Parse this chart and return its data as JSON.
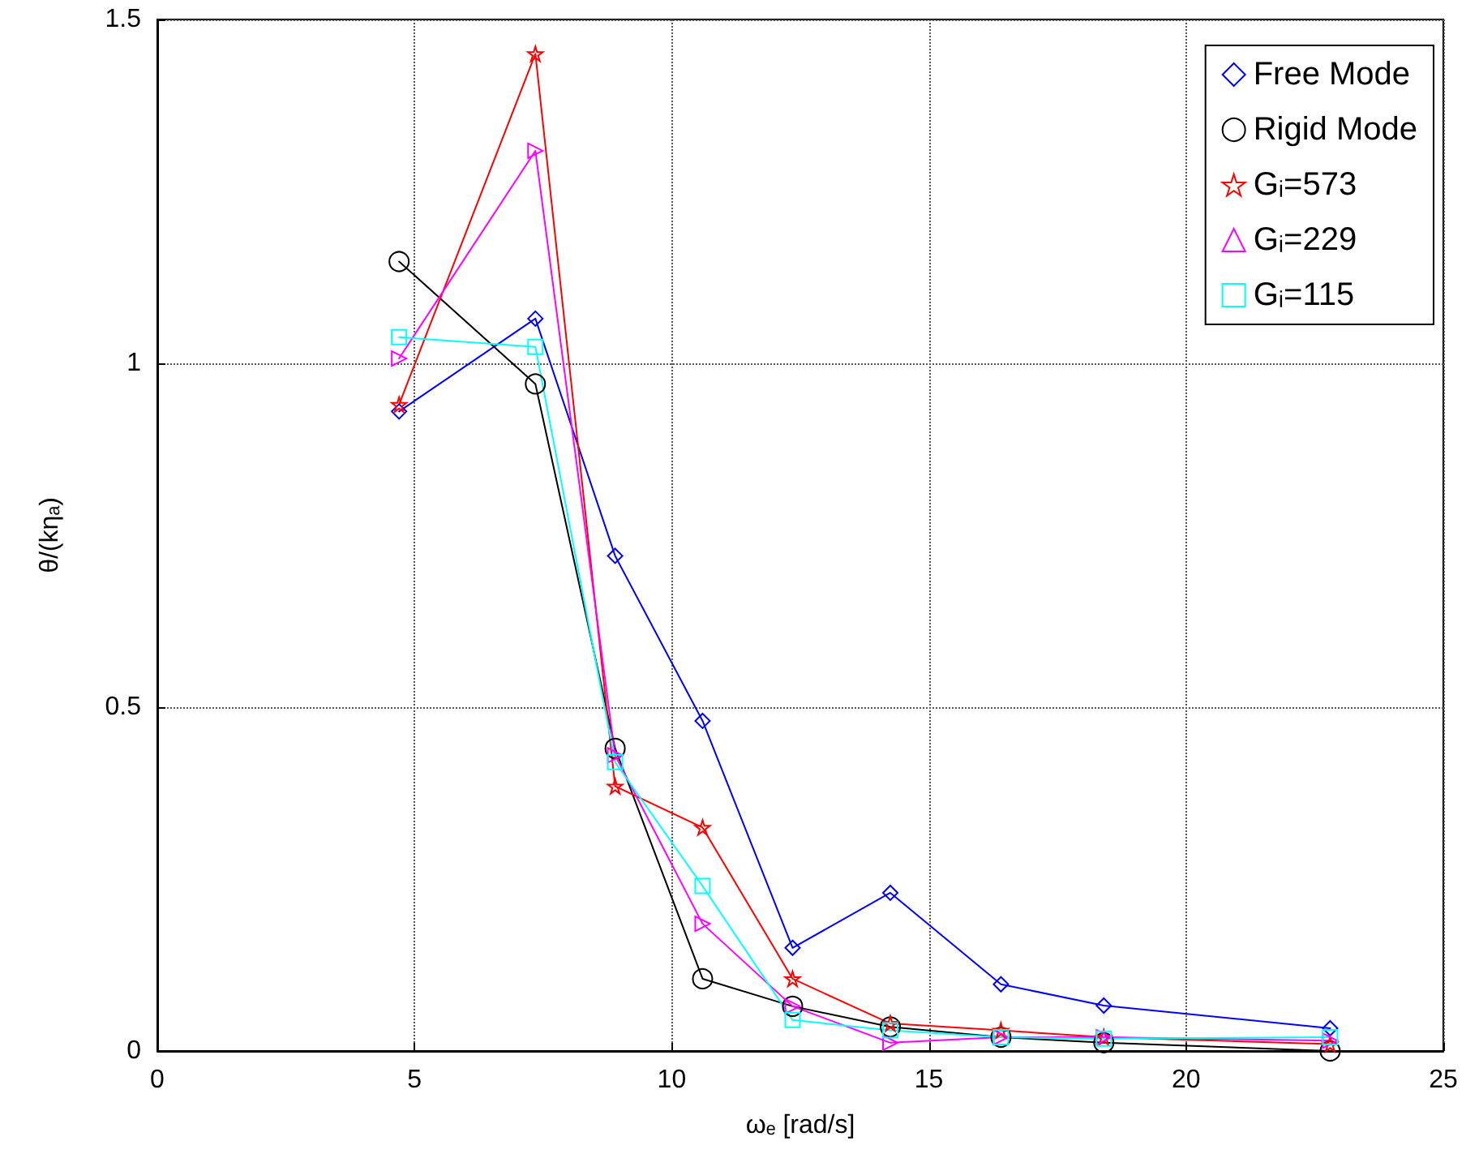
{
  "chart_data": {
    "type": "line",
    "xlabel": "ωₑ [rad/s]",
    "ylabel": "θ/(kηₐ)",
    "x": [
      4.7,
      7.35,
      8.9,
      10.6,
      12.35,
      14.25,
      16.4,
      18.4,
      22.8
    ],
    "series": [
      {
        "name": "Free Mode",
        "color": "#0000ff",
        "marker": "diamond",
        "values": [
          0.93,
          1.065,
          0.72,
          0.48,
          0.15,
          0.23,
          0.097,
          0.066,
          0.033
        ]
      },
      {
        "name": "Rigid Mode",
        "color": "#000000",
        "marker": "circle",
        "values": [
          1.148,
          0.97,
          0.44,
          0.105,
          0.065,
          0.035,
          0.02,
          0.012,
          0.0
        ]
      },
      {
        "name": "Gᵢ=573",
        "color": "#ff0000",
        "marker": "star",
        "values": [
          0.94,
          1.45,
          0.385,
          0.325,
          0.105,
          0.04,
          0.03,
          0.02,
          0.01
        ]
      },
      {
        "name": "Gᵢ=229",
        "color": "#ff00ff",
        "marker": "triangle",
        "values": [
          1.007,
          1.309,
          0.43,
          0.185,
          0.065,
          0.012,
          0.02,
          0.02,
          0.015
        ]
      },
      {
        "name": "Gᵢ=115",
        "color": "#00ffff",
        "marker": "square",
        "values": [
          1.038,
          1.024,
          0.42,
          0.24,
          0.045,
          0.03,
          0.02,
          0.018,
          0.02
        ]
      }
    ],
    "xlim": [
      0,
      25
    ],
    "xticks": [
      0,
      5,
      10,
      15,
      20,
      25
    ],
    "ylim": [
      0,
      1.5
    ],
    "yticks": [
      0,
      0.5,
      1,
      1.5
    ],
    "grid": true,
    "legend": "top right",
    "line_style": "solid"
  }
}
